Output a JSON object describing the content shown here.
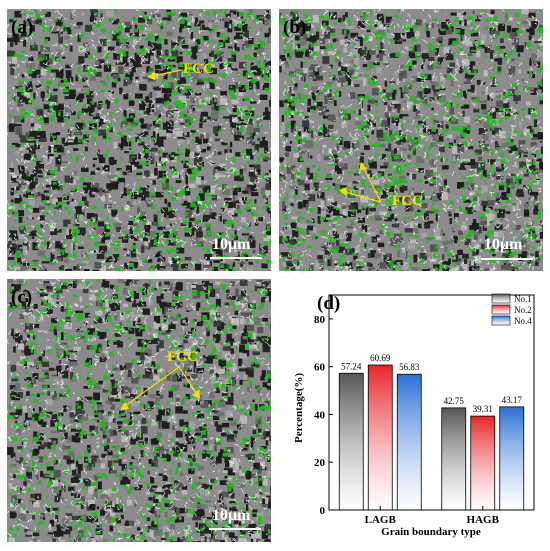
{
  "micrographs": [
    {
      "label": "(a)",
      "phase_label": "FCC",
      "scale_label": "10μm"
    },
    {
      "label": "(b)",
      "phase_label": "FCC",
      "scale_label": "10μm"
    },
    {
      "label": "(c)",
      "phase_label": "FCC",
      "scale_label": "10μm"
    }
  ],
  "colors": {
    "matrix_dark": "#1e1e1e",
    "matrix_gray": "#8c8c8c",
    "fcc_green": "#22b81e",
    "boundary_white": "#ffffff",
    "arrow_yellow": "#f5e100"
  },
  "chart_data": {
    "type": "bar",
    "panel_label": "(d)",
    "categories": [
      "LAGB",
      "HAGB"
    ],
    "series": [
      {
        "name": "No.1",
        "color": "#555555",
        "values": [
          57.24,
          42.75
        ],
        "value_labels": [
          "57.24",
          "42.75"
        ]
      },
      {
        "name": "No.2",
        "color": "#e8232a",
        "values": [
          60.69,
          39.31
        ],
        "value_labels": [
          "60.69",
          "39.31"
        ]
      },
      {
        "name": "No.4",
        "color": "#2a6fd6",
        "values": [
          56.83,
          43.17
        ],
        "value_labels": [
          "56.83",
          "43.17"
        ]
      }
    ],
    "xlabel": "Grain boundary type",
    "ylabel": "Percentage(%)",
    "ylim": [
      0,
      90
    ],
    "yticks": [
      0,
      20,
      40,
      60,
      80
    ],
    "grid": false,
    "legend_position": "top-right"
  }
}
